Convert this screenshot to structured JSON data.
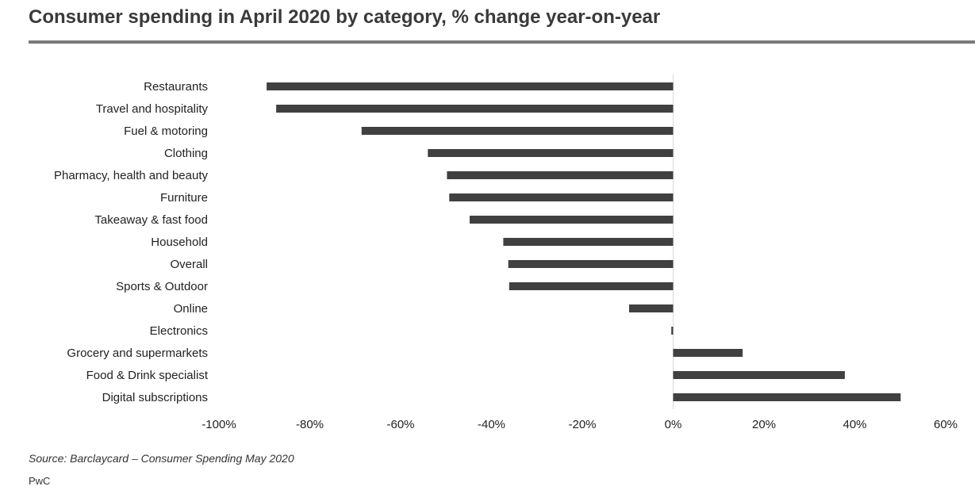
{
  "title": "Consumer spending in April 2020 by category, % change year-on-year",
  "source": "Source: Barclaycard – Consumer Spending May 2020",
  "brand": "PwC",
  "chart_data": {
    "type": "bar",
    "orientation": "horizontal",
    "categories": [
      "Restaurants",
      "Travel and hospitality",
      "Fuel & motoring",
      "Clothing",
      "Pharmacy, health and beauty",
      "Furniture",
      "Takeaway & fast food",
      "Household",
      "Overall",
      "Sports & Outdoor",
      "Online",
      "Electronics",
      "Grocery and supermarkets",
      "Food & Drink specialist",
      "Digital subscriptions"
    ],
    "values": [
      -89.5,
      -87.4,
      -68.6,
      -54.0,
      -49.8,
      -49.3,
      -44.8,
      -37.4,
      -36.3,
      -36.1,
      -9.7,
      -0.4,
      15.3,
      37.8,
      50.1
    ],
    "xlim": [
      -100,
      60
    ],
    "xticks": [
      -100,
      -80,
      -60,
      -40,
      -20,
      0,
      20,
      40,
      60
    ],
    "xtick_labels": [
      "-100%",
      "-80%",
      "-60%",
      "-40%",
      "-20%",
      "0%",
      "20%",
      "40%",
      "60%"
    ],
    "xlabel": "",
    "ylabel": "",
    "grid": false,
    "bar_color": "#404040",
    "axis_color": "#d9d9d9"
  }
}
